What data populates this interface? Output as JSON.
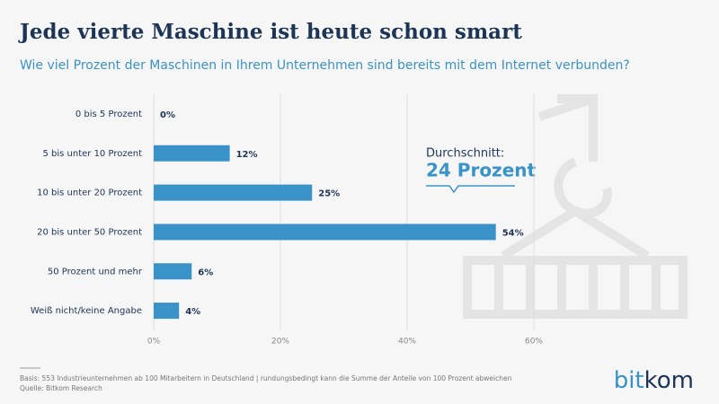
{
  "chart_data": {
    "type": "bar",
    "orientation": "horizontal",
    "title": "Jede vierte Maschine ist heute schon smart",
    "subtitle": "Wie viel Prozent der Maschinen in Ihrem Unternehmen sind bereits mit dem Internet verbunden?",
    "categories": [
      "0 bis 5 Prozent",
      "5 bis unter 10 Prozent",
      "10 bis unter 20 Prozent",
      "20 bis unter 50 Prozent",
      "50 Prozent und mehr",
      "Weiß nicht/keine Angabe"
    ],
    "values": [
      0,
      12,
      25,
      54,
      6,
      4
    ],
    "value_labels": [
      "0%",
      "12%",
      "25%",
      "54%",
      "6%",
      "4%"
    ],
    "color": "#3a93c8",
    "xlim": [
      0,
      60
    ],
    "xticks": [
      {
        "value": 0,
        "label": "0%"
      },
      {
        "value": 20,
        "label": "20%"
      },
      {
        "value": 40,
        "label": "40%"
      },
      {
        "value": 60,
        "label": "60%"
      }
    ],
    "grid": true,
    "annotation": {
      "label": "Durchschnitt:",
      "value_text": "24 Prozent"
    },
    "footnote": [
      "Basis: 553 Industrieunternehmen ab 100 Mitarbeitern in Deutschland | rundungsbedingt kann die Summe der Anteile von 100 Prozent abweichen",
      "Quelle: Bitkom Research"
    ],
    "logo": [
      "bit",
      "kom"
    ]
  }
}
